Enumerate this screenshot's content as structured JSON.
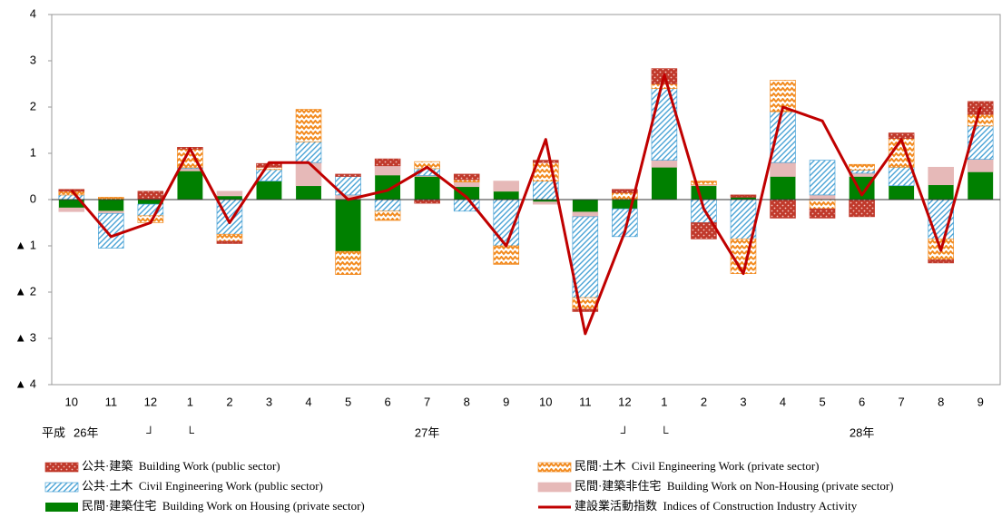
{
  "chart_data": {
    "type": "stacked-bar-line",
    "era": "平成",
    "categories": [
      "10",
      "11",
      "12",
      "1",
      "2",
      "3",
      "4",
      "5",
      "6",
      "7",
      "8",
      "9",
      "10",
      "11",
      "12",
      "1",
      "2",
      "3",
      "4",
      "5",
      "6",
      "7",
      "8",
      "9"
    ],
    "years": [
      "26年",
      null,
      "┘",
      "└",
      null,
      null,
      null,
      null,
      null,
      "27年",
      null,
      null,
      null,
      null,
      "┘",
      "└",
      null,
      null,
      null,
      null,
      "28年",
      null,
      null,
      null
    ],
    "series": [
      {
        "name": "公共·建築  Building Work (public sector)",
        "color": "#c0392b",
        "pattern": "dots",
        "values": [
          0.04,
          0,
          0.18,
          0.04,
          -0.05,
          0.08,
          0,
          0.05,
          0.15,
          -0.08,
          0.12,
          0,
          0.05,
          -0.05,
          0.07,
          0.33,
          -0.35,
          0.05,
          -0.4,
          -0.2,
          -0.37,
          0.12,
          -0.07,
          0.28
        ]
      },
      {
        "name": "民間·土木  Civil Engineering Work (private sector)",
        "color": "#f28a1e",
        "pattern": "waves",
        "values": [
          0.08,
          0.05,
          -0.15,
          0.4,
          -0.15,
          0.05,
          0.7,
          -0.5,
          -0.2,
          0.15,
          0.05,
          -0.4,
          0.4,
          -0.25,
          0.15,
          0.1,
          0.08,
          -0.75,
          0.68,
          -0.2,
          0.12,
          0.62,
          -0.45,
          0.25
        ]
      },
      {
        "name": "公共·土木  Civil Engineering Work (public sector)",
        "color": "#4aa3d6",
        "pattern": "hatch",
        "values": [
          0.1,
          -0.75,
          -0.25,
          0.02,
          -0.75,
          0.25,
          0.45,
          0.4,
          -0.25,
          0.15,
          -0.25,
          -1.0,
          0.4,
          -1.75,
          -0.6,
          1.55,
          -0.5,
          -0.85,
          1.1,
          0.75,
          0.07,
          0.4,
          -0.85,
          0.72
        ]
      },
      {
        "name": "民間·建築非住宅  Building Work on Non-Housing (private sector)",
        "color": "#e6b9b8",
        "values": [
          -0.08,
          -0.05,
          0,
          0.05,
          0.1,
          0,
          0.5,
          0.1,
          0.2,
          0.02,
          0.1,
          0.22,
          -0.05,
          -0.1,
          0,
          0.15,
          0.02,
          0,
          0.3,
          0.1,
          0.07,
          0,
          0.38,
          0.27
        ]
      },
      {
        "name": "民間·建築住宅  Building Work on Housing (private sector)",
        "color": "#008000",
        "values": [
          -0.18,
          -0.25,
          -0.1,
          0.62,
          0.08,
          0.4,
          0.3,
          -1.12,
          0.53,
          0.5,
          0.28,
          0.18,
          -0.05,
          -0.27,
          -0.2,
          0.7,
          0.3,
          0.05,
          0.5,
          0,
          0.5,
          0.3,
          0.32,
          0.6
        ]
      }
    ],
    "line": {
      "name": "建設業活動指数  Indices of Construction Industry Activity",
      "color": "#c00000",
      "values": [
        0.2,
        -0.8,
        -0.5,
        1.1,
        -0.5,
        0.8,
        0.8,
        0,
        0.2,
        0.7,
        0.05,
        -1.0,
        1.3,
        -2.9,
        -0.7,
        2.7,
        -0.2,
        -1.6,
        2.0,
        1.7,
        0.1,
        1.3,
        -1.1,
        2.0
      ]
    },
    "ylim": [
      -4,
      4
    ],
    "yticks": [
      {
        "value": -4,
        "label": "▲ 4"
      },
      {
        "value": -3,
        "label": "▲ 3"
      },
      {
        "value": -2,
        "label": "▲ 2"
      },
      {
        "value": -1,
        "label": "▲ 1"
      },
      0,
      1,
      2,
      3,
      4
    ]
  }
}
